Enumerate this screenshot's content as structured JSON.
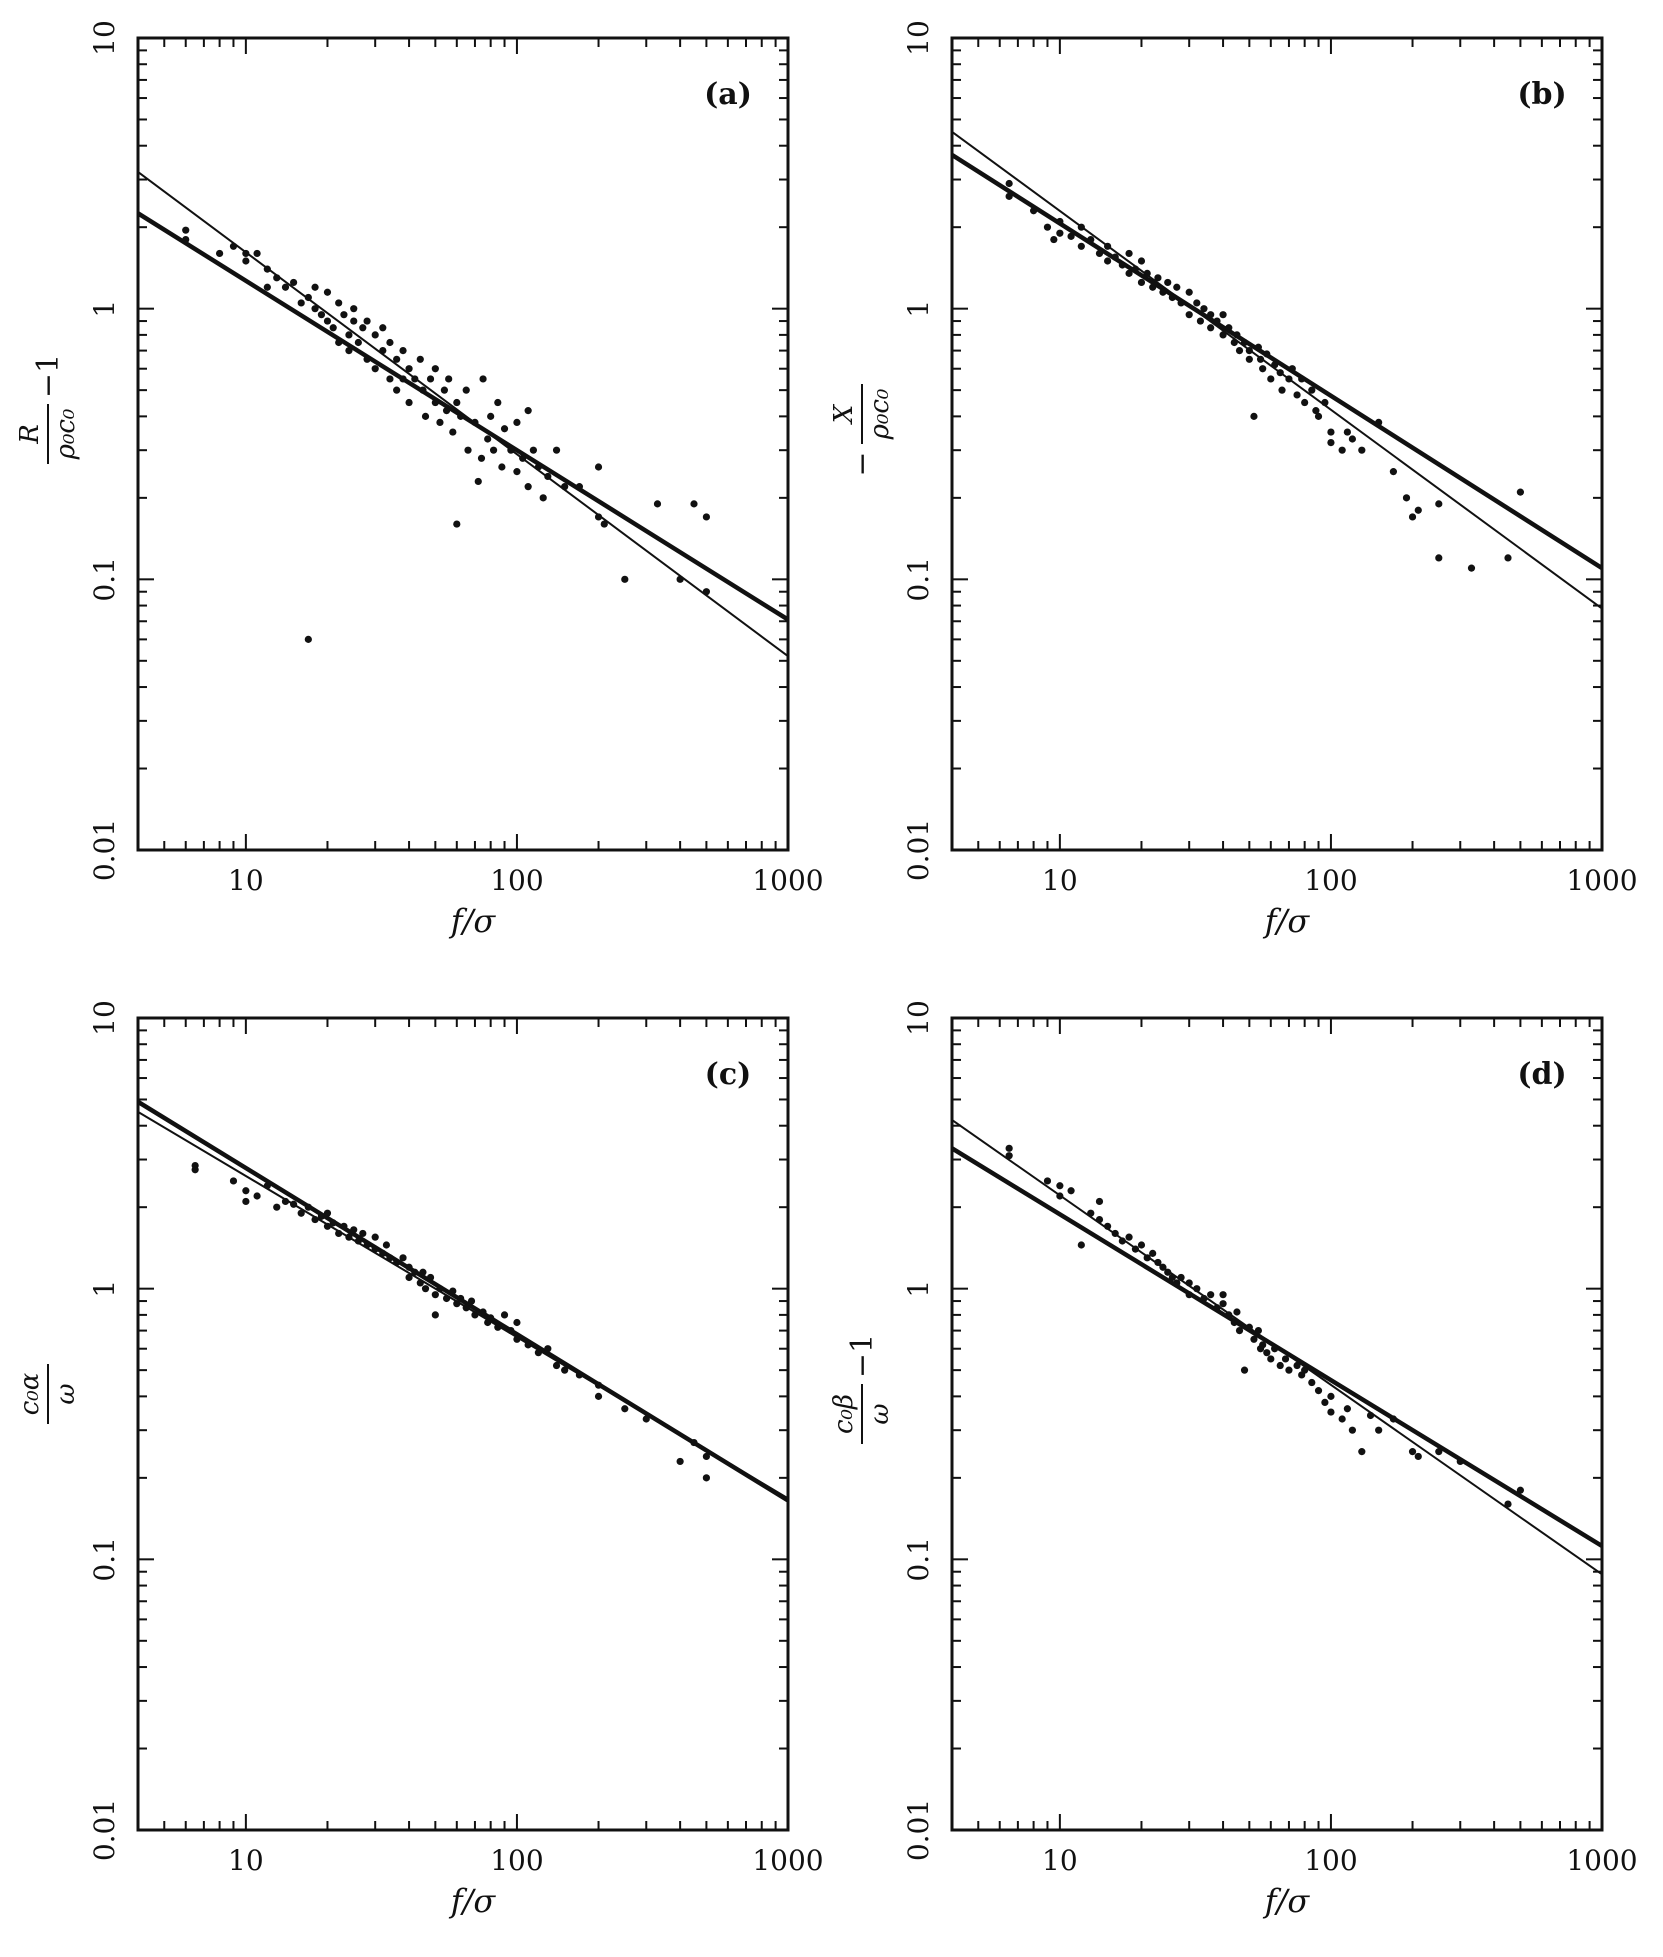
{
  "chart_data": [
    {
      "type": "scatter",
      "panel": "(a)",
      "xlabel": "f/σ",
      "ylabel_kind": "R_over_rho0c0_minus1",
      "x_scale": "log",
      "y_scale": "log",
      "xlim": [
        4,
        1000
      ],
      "ylim": [
        0.01,
        10
      ],
      "xticks": [
        "10",
        "100",
        "1000"
      ],
      "yticks": [
        "0.01",
        "0.1",
        "1",
        "10"
      ],
      "fit_lines": [
        {
          "style": "thick",
          "x": [
            4,
            1000
          ],
          "y": [
            2.25,
            0.071
          ]
        },
        {
          "style": "thin",
          "x": [
            4,
            1000
          ],
          "y": [
            3.2,
            0.052
          ]
        }
      ],
      "points": [
        [
          6,
          1.95
        ],
        [
          6,
          1.8
        ],
        [
          8,
          1.6
        ],
        [
          9,
          1.7
        ],
        [
          10,
          1.6
        ],
        [
          10,
          1.5
        ],
        [
          11,
          1.6
        ],
        [
          12,
          1.4
        ],
        [
          12,
          1.2
        ],
        [
          13,
          1.3
        ],
        [
          14,
          1.2
        ],
        [
          15,
          1.25
        ],
        [
          16,
          1.05
        ],
        [
          17,
          1.1
        ],
        [
          18,
          1.2
        ],
        [
          18,
          1.0
        ],
        [
          19,
          0.95
        ],
        [
          20,
          0.9
        ],
        [
          20,
          1.15
        ],
        [
          21,
          0.85
        ],
        [
          22,
          1.05
        ],
        [
          22,
          0.75
        ],
        [
          23,
          0.95
        ],
        [
          24,
          0.8
        ],
        [
          24,
          0.7
        ],
        [
          25,
          0.9
        ],
        [
          25,
          1.0
        ],
        [
          26,
          0.75
        ],
        [
          27,
          0.85
        ],
        [
          28,
          0.65
        ],
        [
          28,
          0.9
        ],
        [
          30,
          0.8
        ],
        [
          30,
          0.6
        ],
        [
          32,
          0.7
        ],
        [
          32,
          0.85
        ],
        [
          34,
          0.55
        ],
        [
          34,
          0.75
        ],
        [
          36,
          0.65
        ],
        [
          36,
          0.5
        ],
        [
          38,
          0.7
        ],
        [
          38,
          0.55
        ],
        [
          40,
          0.6
        ],
        [
          40,
          0.45
        ],
        [
          42,
          0.55
        ],
        [
          44,
          0.65
        ],
        [
          45,
          0.5
        ],
        [
          46,
          0.4
        ],
        [
          48,
          0.55
        ],
        [
          50,
          0.45
        ],
        [
          50,
          0.6
        ],
        [
          52,
          0.38
        ],
        [
          54,
          0.5
        ],
        [
          55,
          0.42
        ],
        [
          56,
          0.55
        ],
        [
          58,
          0.35
        ],
        [
          60,
          0.45
        ],
        [
          60,
          0.16
        ],
        [
          62,
          0.4
        ],
        [
          65,
          0.5
        ],
        [
          66,
          0.3
        ],
        [
          70,
          0.38
        ],
        [
          72,
          0.23
        ],
        [
          74,
          0.28
        ],
        [
          75,
          0.55
        ],
        [
          78,
          0.33
        ],
        [
          80,
          0.4
        ],
        [
          82,
          0.3
        ],
        [
          85,
          0.45
        ],
        [
          88,
          0.26
        ],
        [
          90,
          0.36
        ],
        [
          95,
          0.3
        ],
        [
          100,
          0.38
        ],
        [
          100,
          0.25
        ],
        [
          105,
          0.28
        ],
        [
          110,
          0.42
        ],
        [
          110,
          0.22
        ],
        [
          115,
          0.3
        ],
        [
          120,
          0.26
        ],
        [
          125,
          0.2
        ],
        [
          130,
          0.24
        ],
        [
          140,
          0.3
        ],
        [
          150,
          0.22
        ],
        [
          170,
          0.22
        ],
        [
          200,
          0.26
        ],
        [
          200,
          0.17
        ],
        [
          210,
          0.16
        ],
        [
          250,
          0.1
        ],
        [
          330,
          0.19
        ],
        [
          400,
          0.1
        ],
        [
          450,
          0.19
        ],
        [
          500,
          0.17
        ],
        [
          500,
          0.09
        ],
        [
          17,
          0.06
        ]
      ]
    },
    {
      "type": "scatter",
      "panel": "(b)",
      "xlabel": "f/σ",
      "ylabel_kind": "minus_X_over_rho0c0",
      "x_scale": "log",
      "y_scale": "log",
      "xlim": [
        4,
        1000
      ],
      "ylim": [
        0.01,
        10
      ],
      "xticks": [
        "10",
        "100",
        "1000"
      ],
      "yticks": [
        "0.01",
        "0.1",
        "1",
        "10"
      ],
      "fit_lines": [
        {
          "style": "thick",
          "x": [
            4,
            1000
          ],
          "y": [
            3.7,
            0.11
          ]
        },
        {
          "style": "thin",
          "x": [
            4,
            1000
          ],
          "y": [
            4.5,
            0.078
          ]
        }
      ],
      "points": [
        [
          6.5,
          2.9
        ],
        [
          6.5,
          2.6
        ],
        [
          8,
          2.3
        ],
        [
          9,
          2.0
        ],
        [
          9.5,
          1.8
        ],
        [
          10,
          2.1
        ],
        [
          10,
          1.9
        ],
        [
          11,
          1.85
        ],
        [
          12,
          2.0
        ],
        [
          12,
          1.7
        ],
        [
          13,
          1.8
        ],
        [
          14,
          1.6
        ],
        [
          15,
          1.7
        ],
        [
          15,
          1.5
        ],
        [
          16,
          1.55
        ],
        [
          17,
          1.45
        ],
        [
          18,
          1.6
        ],
        [
          18,
          1.35
        ],
        [
          19,
          1.4
        ],
        [
          20,
          1.5
        ],
        [
          20,
          1.25
        ],
        [
          21,
          1.35
        ],
        [
          22,
          1.2
        ],
        [
          23,
          1.3
        ],
        [
          24,
          1.15
        ],
        [
          25,
          1.25
        ],
        [
          26,
          1.1
        ],
        [
          27,
          1.2
        ],
        [
          28,
          1.05
        ],
        [
          30,
          1.15
        ],
        [
          30,
          0.95
        ],
        [
          32,
          1.05
        ],
        [
          33,
          0.9
        ],
        [
          34,
          1.0
        ],
        [
          36,
          0.95
        ],
        [
          36,
          0.85
        ],
        [
          38,
          0.9
        ],
        [
          40,
          0.8
        ],
        [
          40,
          0.95
        ],
        [
          42,
          0.85
        ],
        [
          44,
          0.75
        ],
        [
          45,
          0.8
        ],
        [
          46,
          0.7
        ],
        [
          48,
          0.75
        ],
        [
          50,
          0.7
        ],
        [
          50,
          0.65
        ],
        [
          52,
          0.4
        ],
        [
          54,
          0.72
        ],
        [
          55,
          0.65
        ],
        [
          56,
          0.6
        ],
        [
          58,
          0.68
        ],
        [
          60,
          0.55
        ],
        [
          62,
          0.62
        ],
        [
          65,
          0.58
        ],
        [
          66,
          0.5
        ],
        [
          70,
          0.55
        ],
        [
          72,
          0.6
        ],
        [
          75,
          0.48
        ],
        [
          78,
          0.55
        ],
        [
          80,
          0.45
        ],
        [
          85,
          0.5
        ],
        [
          88,
          0.42
        ],
        [
          90,
          0.4
        ],
        [
          95,
          0.45
        ],
        [
          100,
          0.35
        ],
        [
          100,
          0.32
        ],
        [
          110,
          0.3
        ],
        [
          115,
          0.35
        ],
        [
          120,
          0.33
        ],
        [
          130,
          0.3
        ],
        [
          150,
          0.38
        ],
        [
          170,
          0.25
        ],
        [
          190,
          0.2
        ],
        [
          200,
          0.17
        ],
        [
          210,
          0.18
        ],
        [
          250,
          0.12
        ],
        [
          250,
          0.19
        ],
        [
          330,
          0.11
        ],
        [
          450,
          0.12
        ],
        [
          500,
          0.21
        ]
      ]
    },
    {
      "type": "scatter",
      "panel": "(c)",
      "xlabel": "f/σ",
      "ylabel_kind": "c0alpha_over_omega",
      "x_scale": "log",
      "y_scale": "log",
      "xlim": [
        4,
        1000
      ],
      "ylim": [
        0.01,
        10
      ],
      "xticks": [
        "10",
        "100",
        "1000"
      ],
      "yticks": [
        "0.01",
        "0.1",
        "1",
        "10"
      ],
      "fit_lines": [
        {
          "style": "thick",
          "x": [
            4,
            1000
          ],
          "y": [
            4.9,
            0.165
          ]
        },
        {
          "style": "thin",
          "x": [
            4,
            1000
          ],
          "y": [
            4.5,
            0.168
          ]
        }
      ],
      "points": [
        [
          6.5,
          2.85
        ],
        [
          6.5,
          2.75
        ],
        [
          9,
          2.5
        ],
        [
          10,
          2.1
        ],
        [
          10,
          2.3
        ],
        [
          11,
          2.2
        ],
        [
          12,
          2.4
        ],
        [
          13,
          2.0
        ],
        [
          14,
          2.1
        ],
        [
          15,
          2.05
        ],
        [
          16,
          1.9
        ],
        [
          17,
          2.0
        ],
        [
          18,
          1.8
        ],
        [
          19,
          1.85
        ],
        [
          20,
          1.7
        ],
        [
          20,
          1.9
        ],
        [
          21,
          1.75
        ],
        [
          22,
          1.6
        ],
        [
          23,
          1.7
        ],
        [
          24,
          1.55
        ],
        [
          25,
          1.65
        ],
        [
          26,
          1.5
        ],
        [
          27,
          1.6
        ],
        [
          28,
          1.45
        ],
        [
          30,
          1.55
        ],
        [
          30,
          1.4
        ],
        [
          32,
          1.35
        ],
        [
          33,
          1.45
        ],
        [
          34,
          1.3
        ],
        [
          36,
          1.25
        ],
        [
          38,
          1.3
        ],
        [
          40,
          1.2
        ],
        [
          40,
          1.1
        ],
        [
          42,
          1.15
        ],
        [
          44,
          1.05
        ],
        [
          45,
          1.15
        ],
        [
          46,
          1.0
        ],
        [
          48,
          1.1
        ],
        [
          50,
          0.95
        ],
        [
          50,
          0.8
        ],
        [
          52,
          1.0
        ],
        [
          55,
          0.92
        ],
        [
          58,
          0.98
        ],
        [
          60,
          0.88
        ],
        [
          62,
          0.92
        ],
        [
          65,
          0.85
        ],
        [
          68,
          0.9
        ],
        [
          70,
          0.8
        ],
        [
          75,
          0.82
        ],
        [
          78,
          0.75
        ],
        [
          80,
          0.78
        ],
        [
          85,
          0.72
        ],
        [
          90,
          0.8
        ],
        [
          95,
          0.7
        ],
        [
          100,
          0.75
        ],
        [
          100,
          0.65
        ],
        [
          110,
          0.62
        ],
        [
          120,
          0.58
        ],
        [
          130,
          0.6
        ],
        [
          140,
          0.52
        ],
        [
          150,
          0.5
        ],
        [
          170,
          0.48
        ],
        [
          200,
          0.44
        ],
        [
          200,
          0.4
        ],
        [
          250,
          0.36
        ],
        [
          300,
          0.33
        ],
        [
          400,
          0.23
        ],
        [
          450,
          0.27
        ],
        [
          500,
          0.24
        ],
        [
          500,
          0.2
        ]
      ]
    },
    {
      "type": "scatter",
      "panel": "(d)",
      "xlabel": "f/σ",
      "ylabel_kind": "c0beta_over_omega_minus1",
      "x_scale": "log",
      "y_scale": "log",
      "xlim": [
        4,
        1000
      ],
      "ylim": [
        0.01,
        10
      ],
      "xticks": [
        "10",
        "100",
        "1000"
      ],
      "yticks": [
        "0.01",
        "0.1",
        "1",
        "10"
      ],
      "fit_lines": [
        {
          "style": "thick",
          "x": [
            4,
            1000
          ],
          "y": [
            3.3,
            0.112
          ]
        },
        {
          "style": "thin",
          "x": [
            4,
            1000
          ],
          "y": [
            4.2,
            0.088
          ]
        }
      ],
      "points": [
        [
          6.5,
          3.3
        ],
        [
          6.5,
          3.1
        ],
        [
          9,
          2.5
        ],
        [
          10,
          2.4
        ],
        [
          10,
          2.2
        ],
        [
          11,
          2.3
        ],
        [
          12,
          1.45
        ],
        [
          13,
          1.9
        ],
        [
          14,
          2.1
        ],
        [
          14,
          1.8
        ],
        [
          15,
          1.7
        ],
        [
          16,
          1.6
        ],
        [
          17,
          1.5
        ],
        [
          18,
          1.55
        ],
        [
          19,
          1.4
        ],
        [
          20,
          1.45
        ],
        [
          21,
          1.3
        ],
        [
          22,
          1.35
        ],
        [
          23,
          1.25
        ],
        [
          24,
          1.2
        ],
        [
          25,
          1.15
        ],
        [
          26,
          1.1
        ],
        [
          27,
          1.05
        ],
        [
          28,
          1.1
        ],
        [
          30,
          0.95
        ],
        [
          30,
          1.05
        ],
        [
          32,
          1.0
        ],
        [
          34,
          0.92
        ],
        [
          36,
          0.95
        ],
        [
          38,
          0.85
        ],
        [
          40,
          0.88
        ],
        [
          40,
          0.95
        ],
        [
          42,
          0.8
        ],
        [
          44,
          0.75
        ],
        [
          45,
          0.82
        ],
        [
          46,
          0.7
        ],
        [
          48,
          0.5
        ],
        [
          50,
          0.72
        ],
        [
          52,
          0.65
        ],
        [
          54,
          0.7
        ],
        [
          55,
          0.6
        ],
        [
          56,
          0.62
        ],
        [
          58,
          0.58
        ],
        [
          60,
          0.55
        ],
        [
          62,
          0.6
        ],
        [
          65,
          0.52
        ],
        [
          68,
          0.55
        ],
        [
          70,
          0.5
        ],
        [
          75,
          0.52
        ],
        [
          78,
          0.48
        ],
        [
          80,
          0.5
        ],
        [
          85,
          0.45
        ],
        [
          90,
          0.42
        ],
        [
          95,
          0.38
        ],
        [
          100,
          0.4
        ],
        [
          100,
          0.35
        ],
        [
          110,
          0.33
        ],
        [
          115,
          0.36
        ],
        [
          120,
          0.3
        ],
        [
          130,
          0.25
        ],
        [
          140,
          0.34
        ],
        [
          150,
          0.3
        ],
        [
          170,
          0.33
        ],
        [
          200,
          0.25
        ],
        [
          210,
          0.24
        ],
        [
          250,
          0.25
        ],
        [
          300,
          0.23
        ],
        [
          450,
          0.16
        ],
        [
          500,
          0.18
        ]
      ]
    }
  ]
}
